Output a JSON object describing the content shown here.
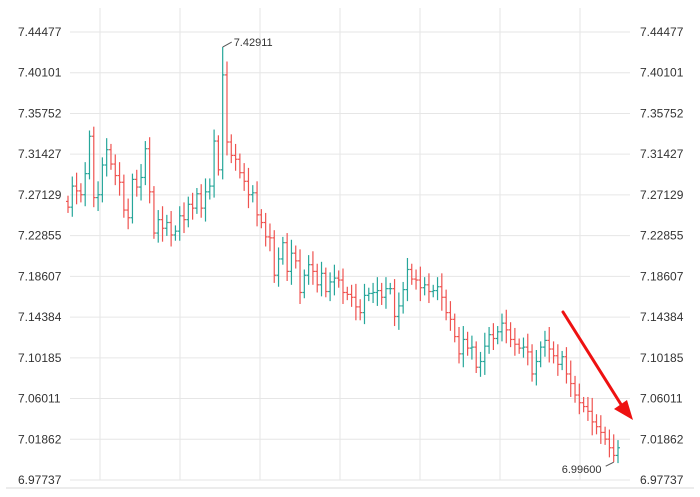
{
  "chart_data": {
    "type": "ohlc",
    "title": "",
    "xlabel": "",
    "ylabel": "",
    "y_ticks": [
      "7.44477",
      "7.40101",
      "7.35752",
      "7.31427",
      "7.27129",
      "7.22855",
      "7.18607",
      "7.14384",
      "7.10185",
      "7.06011",
      "7.01862",
      "6.97737"
    ],
    "ylim": [
      6.97737,
      7.44477
    ],
    "grid": true,
    "axis_sides": "left-and-right",
    "colors": {
      "up": "#26a69a",
      "down": "#ef5350",
      "grid": "#e6e6e6",
      "arrow": "#ee1111"
    },
    "annotations": {
      "high": "7.42911",
      "low": "6.99600"
    },
    "trend_arrow": {
      "direction": "down-right"
    },
    "closes": [
      7.262,
      7.284,
      7.279,
      7.275,
      7.297,
      7.336,
      7.272,
      7.275,
      7.306,
      7.322,
      7.307,
      7.295,
      7.288,
      7.259,
      7.251,
      7.291,
      7.283,
      7.293,
      7.323,
      7.278,
      7.235,
      7.249,
      7.24,
      7.246,
      7.233,
      7.237,
      7.253,
      7.249,
      7.265,
      7.261,
      7.276,
      7.261,
      7.278,
      7.284,
      7.331,
      7.301,
      7.4,
      7.33,
      7.316,
      7.312,
      7.298,
      7.289,
      7.275,
      7.277,
      7.254,
      7.246,
      7.231,
      7.23,
      7.191,
      7.208,
      7.225,
      7.195,
      7.214,
      7.206,
      7.173,
      7.191,
      7.202,
      7.195,
      7.181,
      7.193,
      7.174,
      7.184,
      7.188,
      7.186,
      7.173,
      7.171,
      7.168,
      7.158,
      7.152,
      7.17,
      7.172,
      7.173,
      7.175,
      7.168,
      7.177,
      7.177,
      7.148,
      7.159,
      7.176,
      7.197,
      7.187,
      7.186,
      7.178,
      7.181,
      7.174,
      7.175,
      7.179,
      7.168,
      7.152,
      7.145,
      7.127,
      7.109,
      7.124,
      7.115,
      7.116,
      7.095,
      7.101,
      7.117,
      7.129,
      7.125,
      7.132,
      7.141,
      7.134,
      7.124,
      7.119,
      7.115,
      7.116,
      7.111,
      7.088,
      7.101,
      7.116,
      7.123,
      7.114,
      7.107,
      7.098,
      7.106,
      7.088,
      7.078,
      7.066,
      7.058,
      7.054,
      7.049,
      7.038,
      7.033,
      7.027,
      7.02,
      7.011,
      7.003,
      7.011
    ]
  }
}
